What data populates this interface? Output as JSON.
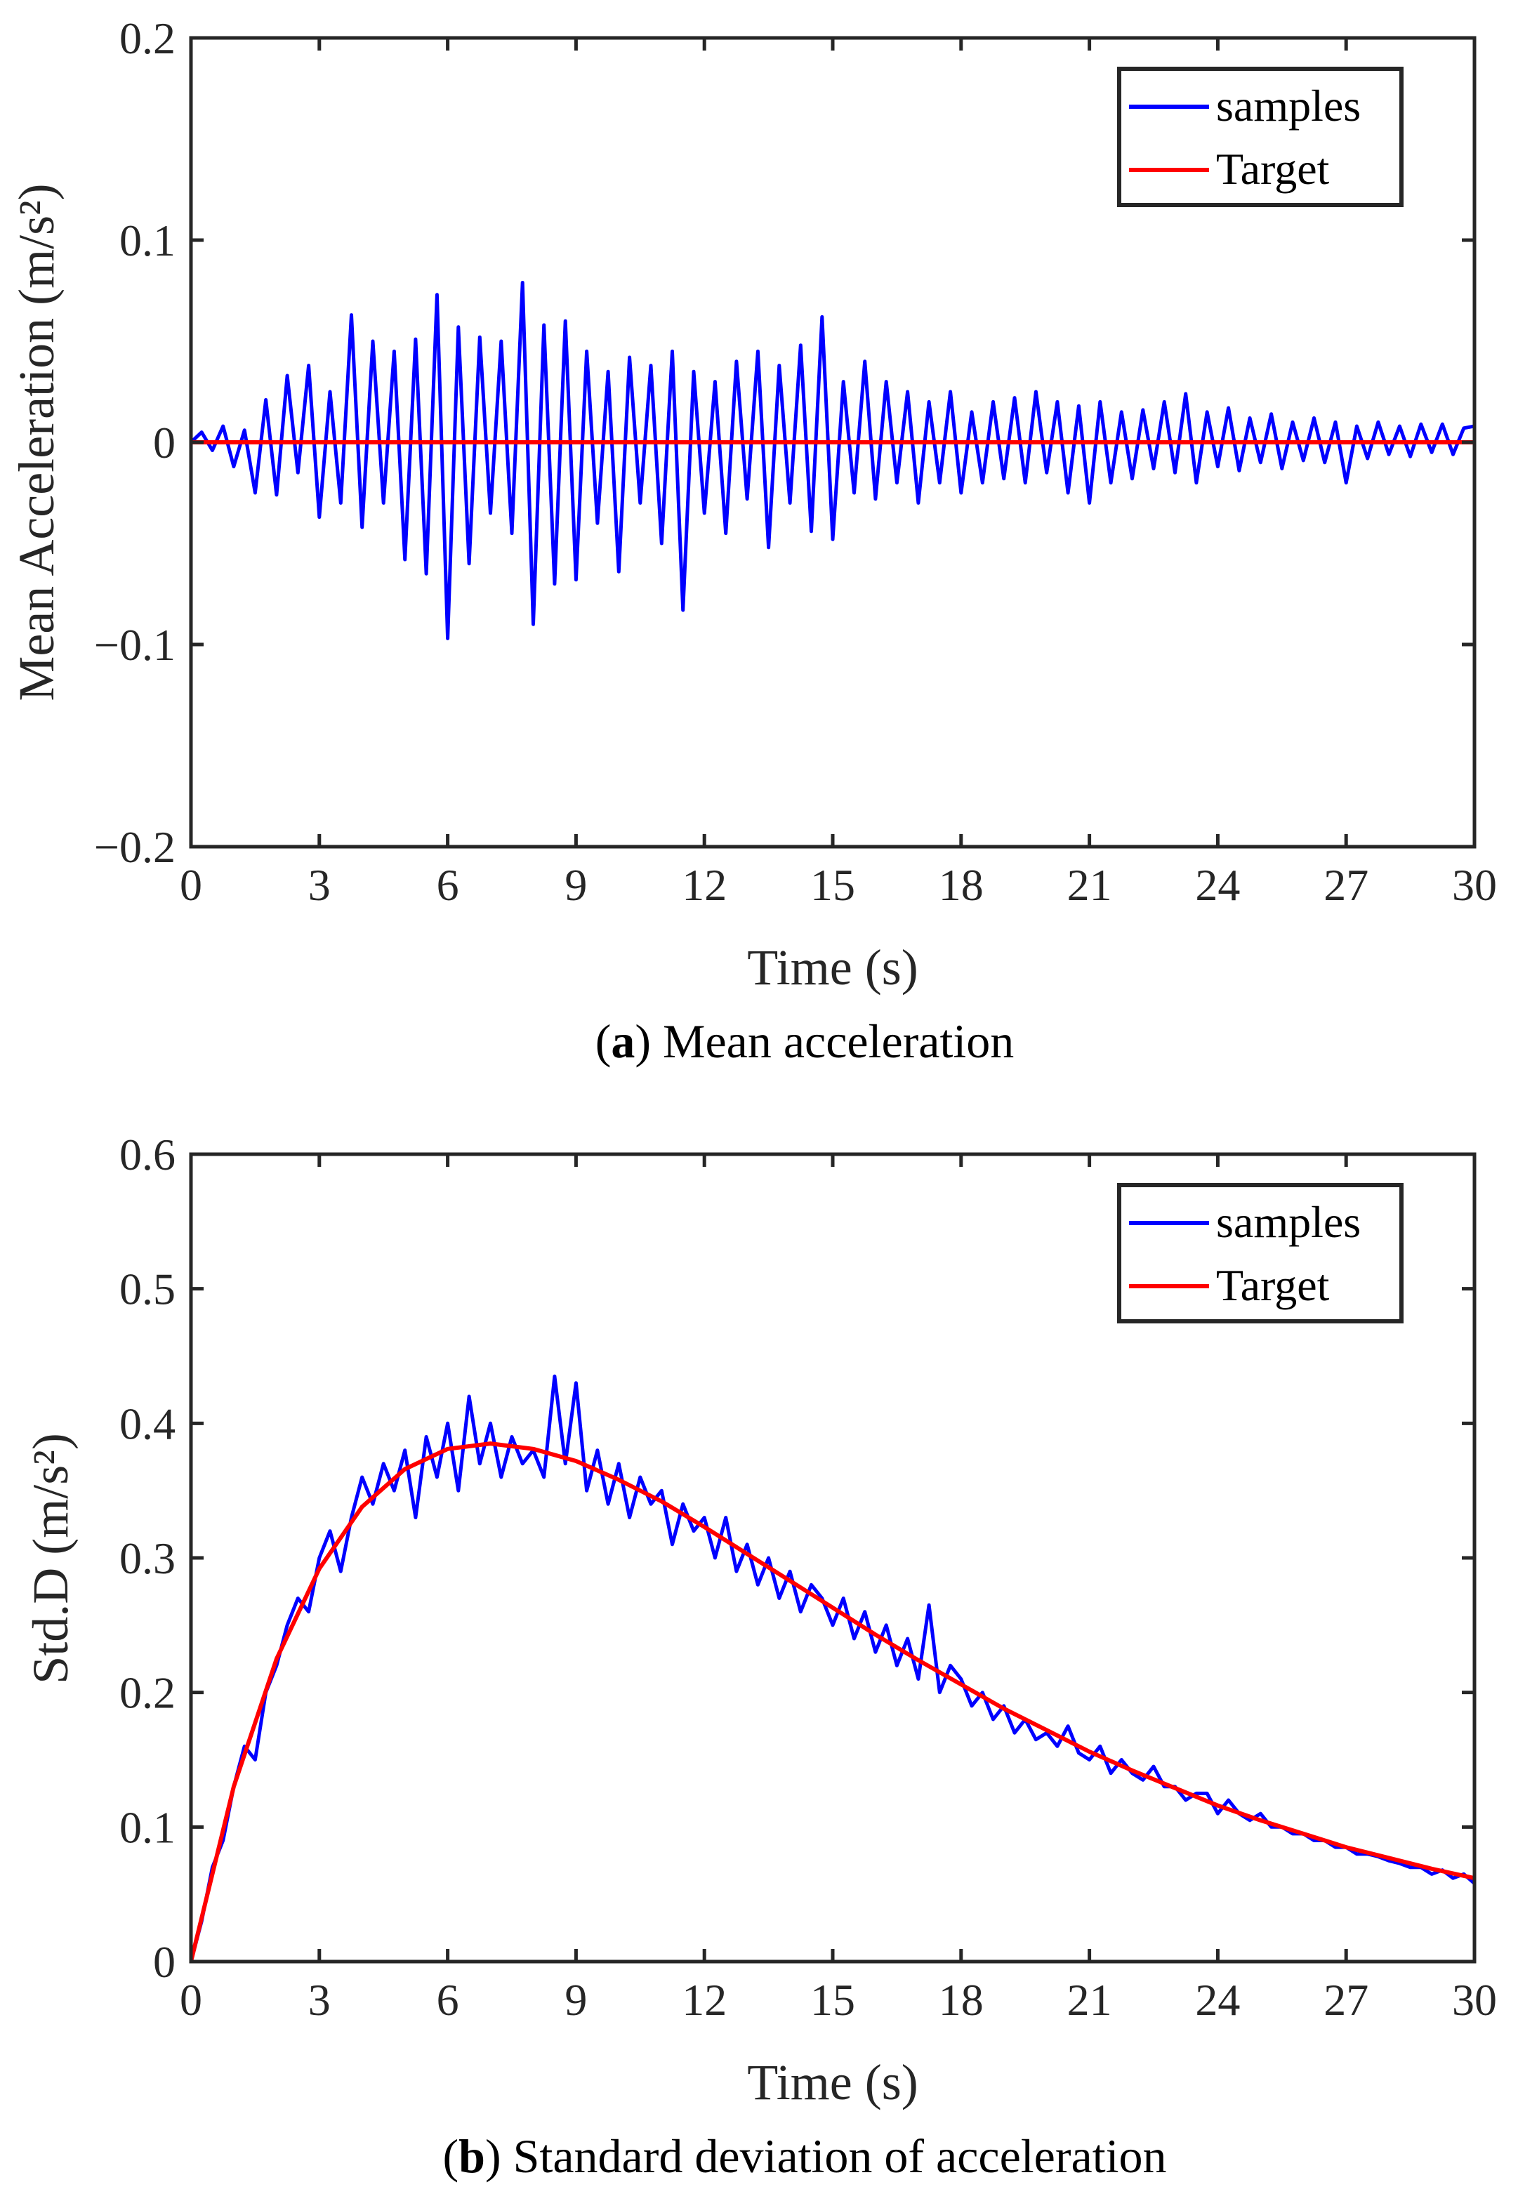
{
  "colors": {
    "samples": "#0000ff",
    "target": "#ff0000",
    "axes": "#262626"
  },
  "chart_data": [
    {
      "type": "line",
      "caption_label": "a",
      "caption_text": "Mean acceleration",
      "xlabel": "Time (s)",
      "ylabel": "Mean Acceleration (m/s²)",
      "xlim": [
        0,
        30
      ],
      "ylim": [
        -0.2,
        0.2
      ],
      "xticks": [
        "0",
        "3",
        "6",
        "9",
        "12",
        "15",
        "18",
        "21",
        "24",
        "27",
        "30"
      ],
      "yticks": [
        "−0.2",
        "−0.1",
        "0",
        "0.1",
        "0.2"
      ],
      "ytick_values": [
        -0.2,
        -0.1,
        0,
        0.1,
        0.2
      ],
      "grid": false,
      "legend_position": "top-right",
      "series": [
        {
          "name": "samples",
          "x_step": 0.25,
          "values": [
            0,
            0.005,
            -0.004,
            0.008,
            -0.012,
            0.006,
            -0.025,
            0.021,
            -0.026,
            0.033,
            -0.015,
            0.038,
            -0.037,
            0.025,
            -0.03,
            0.063,
            -0.042,
            0.05,
            -0.03,
            0.045,
            -0.058,
            0.051,
            -0.065,
            0.073,
            -0.097,
            0.057,
            -0.06,
            0.052,
            -0.035,
            0.05,
            -0.045,
            0.079,
            -0.09,
            0.058,
            -0.07,
            0.06,
            -0.068,
            0.045,
            -0.04,
            0.035,
            -0.064,
            0.042,
            -0.03,
            0.038,
            -0.05,
            0.045,
            -0.083,
            0.035,
            -0.035,
            0.03,
            -0.045,
            0.04,
            -0.028,
            0.045,
            -0.052,
            0.038,
            -0.03,
            0.048,
            -0.044,
            0.062,
            -0.048,
            0.03,
            -0.025,
            0.04,
            -0.028,
            0.03,
            -0.02,
            0.025,
            -0.03,
            0.02,
            -0.02,
            0.025,
            -0.025,
            0.015,
            -0.02,
            0.02,
            -0.018,
            0.022,
            -0.02,
            0.025,
            -0.015,
            0.02,
            -0.025,
            0.018,
            -0.03,
            0.02,
            -0.02,
            0.015,
            -0.018,
            0.016,
            -0.013,
            0.02,
            -0.015,
            0.024,
            -0.02,
            0.015,
            -0.012,
            0.017,
            -0.014,
            0.012,
            -0.01,
            0.014,
            -0.013,
            0.01,
            -0.009,
            0.012,
            -0.01,
            0.01,
            -0.02,
            0.008,
            -0.008,
            0.01,
            -0.006,
            0.008,
            -0.007,
            0.009,
            -0.005,
            0.009,
            -0.006,
            0.007,
            0.008
          ]
        },
        {
          "name": "Target",
          "x_step": 1,
          "values": [
            0,
            0,
            0,
            0,
            0,
            0,
            0,
            0,
            0,
            0,
            0,
            0,
            0,
            0,
            0,
            0,
            0,
            0,
            0,
            0,
            0,
            0,
            0,
            0,
            0,
            0,
            0,
            0,
            0,
            0,
            0
          ]
        }
      ]
    },
    {
      "type": "line",
      "caption_label": "b",
      "caption_text": "Standard deviation of acceleration",
      "xlabel": "Time (s)",
      "ylabel": "Std.D (m/s²)",
      "xlim": [
        0,
        30
      ],
      "ylim": [
        0,
        0.6
      ],
      "xticks": [
        "0",
        "3",
        "6",
        "9",
        "12",
        "15",
        "18",
        "21",
        "24",
        "27",
        "30"
      ],
      "yticks": [
        "0",
        "0.1",
        "0.2",
        "0.3",
        "0.4",
        "0.5",
        "0.6"
      ],
      "ytick_values": [
        0,
        0.1,
        0.2,
        0.3,
        0.4,
        0.5,
        0.6
      ],
      "grid": false,
      "legend_position": "top-right",
      "series": [
        {
          "name": "samples",
          "x_step": 0.25,
          "values": [
            0,
            0.03,
            0.07,
            0.09,
            0.13,
            0.16,
            0.15,
            0.2,
            0.22,
            0.25,
            0.27,
            0.26,
            0.3,
            0.32,
            0.29,
            0.33,
            0.36,
            0.34,
            0.37,
            0.35,
            0.38,
            0.33,
            0.39,
            0.36,
            0.4,
            0.35,
            0.42,
            0.37,
            0.4,
            0.36,
            0.39,
            0.37,
            0.38,
            0.36,
            0.435,
            0.37,
            0.43,
            0.35,
            0.38,
            0.34,
            0.37,
            0.33,
            0.36,
            0.34,
            0.35,
            0.31,
            0.34,
            0.32,
            0.33,
            0.3,
            0.33,
            0.29,
            0.31,
            0.28,
            0.3,
            0.27,
            0.29,
            0.26,
            0.28,
            0.27,
            0.25,
            0.27,
            0.24,
            0.26,
            0.23,
            0.25,
            0.22,
            0.24,
            0.21,
            0.265,
            0.2,
            0.22,
            0.21,
            0.19,
            0.2,
            0.18,
            0.19,
            0.17,
            0.18,
            0.165,
            0.17,
            0.16,
            0.175,
            0.155,
            0.15,
            0.16,
            0.14,
            0.15,
            0.14,
            0.135,
            0.145,
            0.13,
            0.13,
            0.12,
            0.125,
            0.125,
            0.11,
            0.12,
            0.11,
            0.105,
            0.11,
            0.1,
            0.1,
            0.095,
            0.095,
            0.09,
            0.09,
            0.085,
            0.085,
            0.08,
            0.08,
            0.078,
            0.075,
            0.073,
            0.07,
            0.07,
            0.065,
            0.068,
            0.062,
            0.065,
            0.058
          ]
        },
        {
          "name": "Target",
          "x_step": 1,
          "values": [
            0,
            0.13,
            0.225,
            0.292,
            0.338,
            0.366,
            0.381,
            0.385,
            0.381,
            0.372,
            0.358,
            0.342,
            0.323,
            0.303,
            0.283,
            0.263,
            0.243,
            0.224,
            0.206,
            0.188,
            0.172,
            0.156,
            0.142,
            0.129,
            0.116,
            0.105,
            0.095,
            0.085,
            0.077,
            0.069,
            0.062
          ]
        }
      ]
    }
  ]
}
